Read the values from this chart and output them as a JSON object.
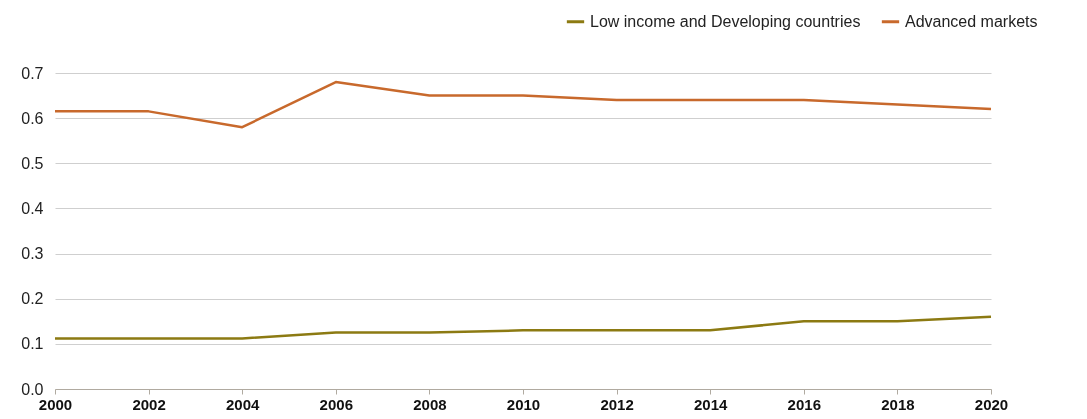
{
  "chart_data": {
    "type": "line",
    "x": [
      2000,
      2002,
      2004,
      2006,
      2008,
      2010,
      2012,
      2014,
      2016,
      2018,
      2020
    ],
    "series": [
      {
        "name": "Low income and Developing countries",
        "color": "#8c7a12",
        "values": [
          0.112,
          0.112,
          0.112,
          0.125,
          0.125,
          0.13,
          0.13,
          0.13,
          0.15,
          0.15,
          0.16
        ]
      },
      {
        "name": "Advanced markets",
        "color": "#c8692c",
        "values": [
          0.615,
          0.615,
          0.58,
          0.68,
          0.65,
          0.65,
          0.64,
          0.64,
          0.64,
          0.63,
          0.62
        ]
      }
    ],
    "xlim": [
      2000,
      2020
    ],
    "xticks": [
      2000,
      2002,
      2004,
      2006,
      2008,
      2010,
      2012,
      2014,
      2016,
      2018,
      2020
    ],
    "ylim": [
      0,
      0.7
    ],
    "yticks": [
      {
        "value": 0,
        "label": "0.0"
      },
      0.1,
      0.2,
      0.3,
      0.4,
      0.5,
      0.6,
      0.7
    ],
    "grid": "y",
    "legend": "top right"
  }
}
